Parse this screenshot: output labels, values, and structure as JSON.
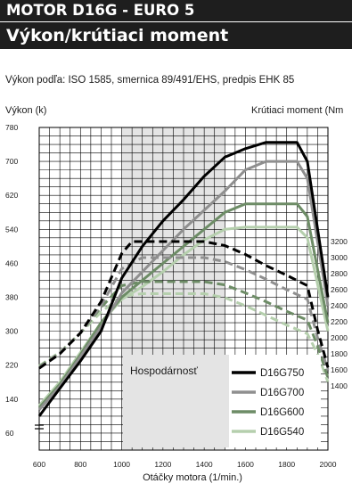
{
  "header": {
    "title": "MOTOR D16G - EURO 5",
    "subtitle": "Výkon/krútiaci moment"
  },
  "description": "Výkon podľa: ISO 1585, smernica 89/491/EHS, predpis EHK 85",
  "chart_data": {
    "type": "line",
    "ylabel": "Výkon (k)",
    "y2label": "Krútiaci moment (Nm",
    "xlabel": "Otáčky motora (1/min.)",
    "xlim": [
      600,
      2000
    ],
    "ylim": [
      20,
      780
    ],
    "y2lim": [
      1400,
      3200
    ],
    "x_ticks": [
      600,
      800,
      1000,
      1200,
      1400,
      1600,
      1800,
      2000
    ],
    "y_ticks": [
      60,
      140,
      220,
      300,
      380,
      460,
      540,
      620,
      700,
      780
    ],
    "y2_ticks": [
      1400,
      1600,
      1800,
      2000,
      2200,
      2400,
      2600,
      2800,
      3000,
      3200
    ],
    "grid": true,
    "legend_position": "bottom-right",
    "band": {
      "label": "Hospodárnosť",
      "x_range": [
        1000,
        1500
      ]
    },
    "series": [
      {
        "name": "D16G750",
        "color": "#000000",
        "power": {
          "x": [
            600,
            700,
            800,
            900,
            1000,
            1100,
            1200,
            1300,
            1400,
            1500,
            1600,
            1700,
            1800,
            1850,
            1900,
            2000
          ],
          "y": [
            100,
            165,
            230,
            300,
            425,
            500,
            560,
            610,
            665,
            710,
            730,
            745,
            745,
            745,
            700,
            380
          ]
        },
        "torque": {
          "x": [
            600,
            700,
            800,
            900,
            1000,
            1050,
            1200,
            1300,
            1400,
            1500,
            1600,
            1700,
            1800,
            1900,
            1950,
            2000
          ],
          "y": [
            1620,
            1800,
            2060,
            2450,
            3050,
            3200,
            3200,
            3200,
            3200,
            3150,
            3040,
            2900,
            2780,
            2650,
            2100,
            1630
          ]
        }
      },
      {
        "name": "D16G700",
        "color": "#8f8f8f",
        "power": {
          "x": [
            600,
            700,
            800,
            900,
            1000,
            1100,
            1200,
            1300,
            1400,
            1500,
            1600,
            1700,
            1800,
            1850,
            1900,
            2000
          ],
          "y": [
            115,
            170,
            240,
            310,
            390,
            440,
            490,
            540,
            585,
            630,
            680,
            700,
            700,
            700,
            660,
            360
          ]
        },
        "torque": {
          "x": [
            600,
            700,
            800,
            900,
            1000,
            1100,
            1200,
            1300,
            1400,
            1500,
            1600,
            1700,
            1800,
            1900,
            1950,
            2000
          ],
          "y": [
            1630,
            1810,
            2060,
            2400,
            2860,
            3000,
            3000,
            3000,
            3000,
            2950,
            2850,
            2730,
            2600,
            2480,
            2000,
            1600
          ]
        }
      },
      {
        "name": "D16G600",
        "color": "#6d8c66",
        "power": {
          "x": [
            600,
            700,
            800,
            900,
            1000,
            1100,
            1200,
            1300,
            1400,
            1500,
            1600,
            1700,
            1800,
            1850,
            1900,
            2000
          ],
          "y": [
            120,
            175,
            245,
            320,
            380,
            420,
            460,
            500,
            540,
            580,
            600,
            600,
            600,
            600,
            570,
            320
          ]
        },
        "torque": {
          "x": [
            600,
            700,
            800,
            900,
            1000,
            1100,
            1200,
            1300,
            1400,
            1500,
            1600,
            1700,
            1800,
            1900,
            1950,
            2000
          ],
          "y": [
            1640,
            1810,
            2060,
            2380,
            2650,
            2700,
            2700,
            2700,
            2700,
            2660,
            2560,
            2450,
            2330,
            2220,
            1900,
            1500
          ]
        }
      },
      {
        "name": "D16G540",
        "color": "#b5cfad",
        "power": {
          "x": [
            600,
            700,
            800,
            900,
            1000,
            1100,
            1200,
            1300,
            1400,
            1500,
            1600,
            1700,
            1800,
            1850,
            1900,
            2000
          ],
          "y": [
            125,
            180,
            250,
            320,
            375,
            405,
            440,
            480,
            515,
            540,
            545,
            545,
            545,
            545,
            520,
            300
          ]
        },
        "torque": {
          "x": [
            600,
            700,
            800,
            900,
            1000,
            1100,
            1200,
            1300,
            1400,
            1500,
            1600,
            1700,
            1800,
            1900,
            1950,
            2000
          ],
          "y": [
            1650,
            1820,
            2060,
            2320,
            2520,
            2550,
            2550,
            2550,
            2550,
            2500,
            2400,
            2280,
            2160,
            2050,
            1800,
            1450
          ]
        }
      }
    ]
  }
}
